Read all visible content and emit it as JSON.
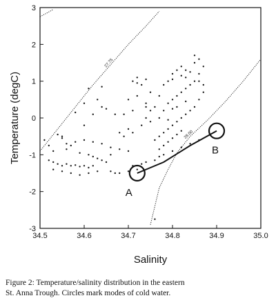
{
  "chart_data": {
    "type": "scatter",
    "title": "",
    "xlabel": "Salinity",
    "ylabel": "Temperature (degC)",
    "xlim": [
      34.5,
      35.0
    ],
    "ylim": [
      -3,
      3
    ],
    "xticks": [
      "34.5",
      "34.6",
      "34.7",
      "34.8",
      "34.9",
      "35.0"
    ],
    "yticks": [
      "3",
      "2",
      "1",
      "0",
      "-1",
      "-2",
      "-3"
    ],
    "grid": false,
    "legend": "none",
    "marker_color": "#1a1a1a",
    "isopycnals": [
      {
        "label": "27.75",
        "points": [
          [
            34.5,
            -0.9
          ],
          [
            34.54,
            -0.3
          ],
          [
            34.58,
            0.3
          ],
          [
            34.62,
            0.9
          ],
          [
            34.66,
            1.45
          ],
          [
            34.7,
            2.0
          ],
          [
            34.74,
            2.5
          ],
          [
            34.77,
            2.9
          ]
        ]
      },
      {
        "label": "28.00",
        "points": [
          [
            34.75,
            -2.9
          ],
          [
            34.76,
            -2.4
          ],
          [
            34.77,
            -1.9
          ],
          [
            34.79,
            -1.4
          ],
          [
            34.81,
            -0.95
          ],
          [
            34.84,
            -0.5
          ],
          [
            34.88,
            -0.05
          ],
          [
            34.92,
            0.45
          ],
          [
            34.96,
            1.0
          ],
          [
            35.0,
            1.6
          ]
        ]
      },
      {
        "label": "",
        "points": [
          [
            34.5,
            2.75
          ],
          [
            34.515,
            2.85
          ],
          [
            34.53,
            2.95
          ]
        ]
      }
    ],
    "series": [
      {
        "points": [
          [
            34.52,
            -1.15
          ],
          [
            34.53,
            -1.2
          ],
          [
            34.54,
            -1.25
          ],
          [
            34.55,
            -1.3
          ],
          [
            34.56,
            -1.25
          ],
          [
            34.57,
            -1.3
          ],
          [
            34.58,
            -1.28
          ],
          [
            34.59,
            -1.32
          ],
          [
            34.6,
            -1.3
          ],
          [
            34.61,
            -1.35
          ],
          [
            34.62,
            -1.3
          ],
          [
            34.53,
            -1.4
          ],
          [
            34.55,
            -1.45
          ],
          [
            34.57,
            -1.5
          ],
          [
            34.59,
            -1.55
          ],
          [
            34.61,
            -1.5
          ],
          [
            34.63,
            -1.45
          ],
          [
            34.51,
            -0.6
          ],
          [
            34.52,
            -0.75
          ],
          [
            34.53,
            -0.9
          ],
          [
            34.54,
            -0.45
          ],
          [
            34.55,
            -0.55
          ],
          [
            34.56,
            -0.85
          ],
          [
            34.56,
            -0.7
          ],
          [
            34.58,
            -0.65
          ],
          [
            34.6,
            -0.6
          ],
          [
            34.62,
            -0.65
          ],
          [
            34.64,
            -0.7
          ],
          [
            34.66,
            -0.8
          ],
          [
            34.68,
            -0.85
          ],
          [
            34.7,
            -0.9
          ],
          [
            34.6,
            -0.2
          ],
          [
            34.58,
            0.15
          ],
          [
            34.62,
            0.1
          ],
          [
            34.64,
            0.3
          ],
          [
            34.6,
            0.4
          ],
          [
            34.63,
            0.5
          ],
          [
            34.61,
            0.8
          ],
          [
            34.65,
            0.25
          ],
          [
            34.67,
            0.1
          ],
          [
            34.63,
            -1.1
          ],
          [
            34.64,
            -1.15
          ],
          [
            34.65,
            -1.2
          ],
          [
            34.66,
            -1.0
          ],
          [
            34.66,
            -1.45
          ],
          [
            34.67,
            -1.5
          ],
          [
            34.68,
            -1.5
          ],
          [
            34.7,
            -1.45
          ],
          [
            34.72,
            -1.4
          ],
          [
            34.71,
            -1.3
          ],
          [
            34.73,
            -1.25
          ],
          [
            34.74,
            -1.2
          ],
          [
            34.76,
            -1.15
          ],
          [
            34.77,
            -1.05
          ],
          [
            34.68,
            -0.4
          ],
          [
            34.69,
            -0.5
          ],
          [
            34.7,
            -0.3
          ],
          [
            34.71,
            -0.4
          ],
          [
            34.69,
            0.1
          ],
          [
            34.71,
            0.2
          ],
          [
            34.7,
            0.5
          ],
          [
            34.72,
            0.6
          ],
          [
            34.73,
            -0.2
          ],
          [
            34.74,
            0.0
          ],
          [
            34.75,
            0.2
          ],
          [
            34.74,
            0.4
          ],
          [
            34.76,
            0.3
          ],
          [
            34.75,
            0.7
          ],
          [
            34.77,
            0.6
          ],
          [
            34.71,
            1.0
          ],
          [
            34.72,
            0.95
          ],
          [
            34.73,
            0.9
          ],
          [
            34.74,
            1.05
          ],
          [
            34.72,
            1.1
          ],
          [
            34.76,
            -0.6
          ],
          [
            34.77,
            -0.5
          ],
          [
            34.78,
            -0.4
          ],
          [
            34.79,
            -0.3
          ],
          [
            34.8,
            -0.2
          ],
          [
            34.81,
            -0.1
          ],
          [
            34.82,
            0.0
          ],
          [
            34.83,
            0.1
          ],
          [
            34.84,
            0.2
          ],
          [
            34.85,
            0.3
          ],
          [
            34.77,
            -0.85
          ],
          [
            34.78,
            -0.75
          ],
          [
            34.79,
            -0.65
          ],
          [
            34.8,
            -0.55
          ],
          [
            34.81,
            -0.45
          ],
          [
            34.82,
            -0.35
          ],
          [
            34.79,
            0.4
          ],
          [
            34.8,
            0.5
          ],
          [
            34.81,
            0.6
          ],
          [
            34.82,
            0.7
          ],
          [
            34.83,
            0.8
          ],
          [
            34.84,
            0.9
          ],
          [
            34.85,
            1.0
          ],
          [
            34.8,
            1.2
          ],
          [
            34.81,
            1.3
          ],
          [
            34.82,
            1.4
          ],
          [
            34.83,
            1.1
          ],
          [
            34.84,
            1.25
          ],
          [
            34.85,
            1.5
          ],
          [
            34.85,
            1.7
          ],
          [
            34.86,
            1.6
          ],
          [
            34.86,
            0.5
          ],
          [
            34.87,
            0.7
          ],
          [
            34.87,
            0.9
          ],
          [
            34.86,
            1.2
          ],
          [
            34.87,
            1.4
          ],
          [
            34.86,
            1.0
          ],
          [
            34.77,
            0.0
          ],
          [
            34.78,
            0.2
          ],
          [
            34.79,
            -0.05
          ],
          [
            34.8,
            0.25
          ],
          [
            34.81,
            0.3
          ],
          [
            34.83,
            0.45
          ],
          [
            34.78,
            -1.0
          ],
          [
            34.8,
            -0.9
          ],
          [
            34.82,
            -0.8
          ],
          [
            34.84,
            -0.7
          ],
          [
            34.86,
            -0.6
          ],
          [
            34.76,
            -2.75
          ],
          [
            34.64,
            0.85
          ],
          [
            34.55,
            -0.5
          ],
          [
            34.57,
            -0.75
          ],
          [
            34.59,
            -0.95
          ],
          [
            34.61,
            -1.0
          ],
          [
            34.62,
            -1.05
          ],
          [
            34.74,
            0.3
          ],
          [
            34.75,
            -0.1
          ],
          [
            34.78,
            0.9
          ],
          [
            34.79,
            1.0
          ],
          [
            34.8,
            1.05
          ],
          [
            34.82,
            1.15
          ],
          [
            34.83,
            1.3
          ]
        ]
      }
    ],
    "modes": [
      {
        "label": "A",
        "x": 34.72,
        "y": -1.5
      },
      {
        "label": "B",
        "x": 34.9,
        "y": -0.35
      }
    ],
    "mode_line": [
      [
        34.72,
        -1.5
      ],
      [
        34.78,
        -1.2
      ],
      [
        34.84,
        -0.75
      ],
      [
        34.9,
        -0.35
      ]
    ]
  },
  "caption": {
    "line1": "Figure 2: Temperature/salinity distribution in the eastern",
    "line2": "St. Anna Trough. Circles mark modes of cold water."
  }
}
